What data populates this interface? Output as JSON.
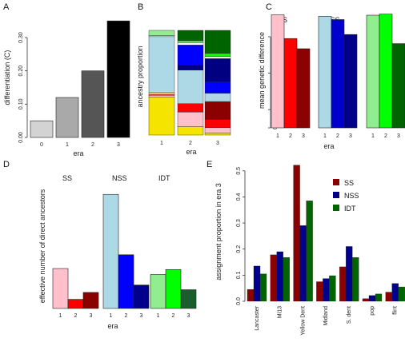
{
  "chart_data": [
    {
      "panel": "A",
      "type": "bar",
      "categories": [
        "0",
        "1",
        "2",
        "3"
      ],
      "values": [
        0.05,
        0.12,
        0.2,
        0.35
      ],
      "colors": [
        "#d3d3d3",
        "#a9a9a9",
        "#555555",
        "#000000"
      ],
      "xlabel": "era",
      "ylabel": "differentiation (C)",
      "yticks": [
        "0.00",
        "0.10",
        "0.20",
        "0.30"
      ],
      "tick_values": [
        0,
        0.1,
        0.2,
        0.3
      ],
      "ylim": [
        0,
        0.36
      ]
    },
    {
      "panel": "B",
      "type": "bar",
      "categories": [
        "1",
        "2",
        "3"
      ],
      "xlabel": "era",
      "ylabel": "ancestry proportion",
      "ylim": [
        0,
        1
      ],
      "stacks": [
        [
          {
            "color": "#f4e400",
            "value": 0.36
          },
          {
            "color": "#ffc0cb",
            "value": 0.02
          },
          {
            "color": "#ff4b4b",
            "value": 0.01
          },
          {
            "color": "#ffe08a",
            "value": 0.02
          },
          {
            "color": "#add8e6",
            "value": 0.53
          },
          {
            "color": "#ffffff",
            "value": 0.01
          },
          {
            "color": "#90ee90",
            "value": 0.05
          }
        ],
        [
          {
            "color": "#f4e400",
            "value": 0.08
          },
          {
            "color": "#ffc0cb",
            "value": 0.14
          },
          {
            "color": "#ff0000",
            "value": 0.08
          },
          {
            "color": "#add8e6",
            "value": 0.32
          },
          {
            "color": "#000080",
            "value": 0.05
          },
          {
            "color": "#0000ff",
            "value": 0.19
          },
          {
            "color": "#ffffff",
            "value": 0.02
          },
          {
            "color": "#90ee90",
            "value": 0.02
          },
          {
            "color": "#006400",
            "value": 0.1
          }
        ],
        [
          {
            "color": "#f4e400",
            "value": 0.02
          },
          {
            "color": "#ffc0cb",
            "value": 0.05
          },
          {
            "color": "#ff0000",
            "value": 0.08
          },
          {
            "color": "#8b0000",
            "value": 0.17
          },
          {
            "color": "#add8e6",
            "value": 0.08
          },
          {
            "color": "#0000ff",
            "value": 0.11
          },
          {
            "color": "#000080",
            "value": 0.22
          },
          {
            "color": "#ffffff",
            "value": 0.02
          },
          {
            "color": "#00ff00",
            "value": 0.03
          },
          {
            "color": "#006400",
            "value": 0.22
          }
        ]
      ]
    },
    {
      "panel": "C",
      "type": "bar",
      "ylabel": "mean genetic difference",
      "xlabel": "era",
      "ylim": [
        0,
        32000
      ],
      "yticks": [
        "0",
        "5000",
        "15000",
        "25000"
      ],
      "tick_values": [
        0,
        5000,
        15000,
        25000
      ],
      "groups": [
        {
          "name": "SS",
          "categories": [
            "1",
            "2",
            "3"
          ],
          "values": [
            31000,
            24500,
            21700
          ],
          "colors": [
            "#ffc0cb",
            "#ff0000",
            "#8b0000"
          ]
        },
        {
          "name": "NSS",
          "categories": [
            "1",
            "2",
            "3"
          ],
          "values": [
            30600,
            29700,
            25600
          ],
          "colors": [
            "#add8e6",
            "#0000cd",
            "#00008b"
          ]
        },
        {
          "name": "IDT",
          "categories": [
            "1",
            "2",
            "3"
          ],
          "values": [
            30900,
            31200,
            23100
          ],
          "colors": [
            "#90ee90",
            "#00ff00",
            "#006400"
          ]
        }
      ]
    },
    {
      "panel": "D",
      "type": "bar",
      "ylabel": "effective number of direct ancestors",
      "xlabel": "era",
      "ylim": [
        0,
        48
      ],
      "groups": [
        {
          "name": "SS",
          "categories": [
            "1",
            "2",
            "3"
          ],
          "values": [
            16.2,
            3.7,
            6.5
          ],
          "colors": [
            "#ffc0cb",
            "#ff0000",
            "#8b0000"
          ]
        },
        {
          "name": "NSS",
          "categories": [
            "1",
            "2",
            "3"
          ],
          "values": [
            46.3,
            21.8,
            9.5
          ],
          "colors": [
            "#add8e6",
            "#0000ff",
            "#00008b"
          ]
        },
        {
          "name": "IDT",
          "categories": [
            "1",
            "2",
            "3"
          ],
          "values": [
            13.8,
            15.8,
            7.6
          ],
          "colors": [
            "#90ee90",
            "#00ff00",
            "#1a5e2e"
          ]
        }
      ]
    },
    {
      "panel": "E",
      "type": "bar",
      "ylabel": "assignment proportion in era 3",
      "categories": [
        "Lancaster",
        "Mi13",
        "Yellow Dent",
        "Midland",
        "S. dent",
        "pop",
        "flint"
      ],
      "yticks": [
        "0.0",
        "0.1",
        "0.2",
        "0.3",
        "0.4",
        "0.5"
      ],
      "tick_values": [
        0,
        0.1,
        0.2,
        0.3,
        0.4,
        0.5
      ],
      "ylim": [
        0,
        0.53
      ],
      "legend_position": "top-right",
      "series": [
        {
          "name": "SS",
          "color": "#8b0000",
          "values": [
            0.045,
            0.178,
            0.522,
            0.075,
            0.132,
            0.01,
            0.035
          ]
        },
        {
          "name": "NSS",
          "color": "#00008b",
          "values": [
            0.135,
            0.19,
            0.29,
            0.087,
            0.21,
            0.022,
            0.068
          ]
        },
        {
          "name": "IDT",
          "color": "#006400",
          "values": [
            0.105,
            0.168,
            0.385,
            0.098,
            0.168,
            0.028,
            0.055
          ]
        }
      ]
    }
  ]
}
